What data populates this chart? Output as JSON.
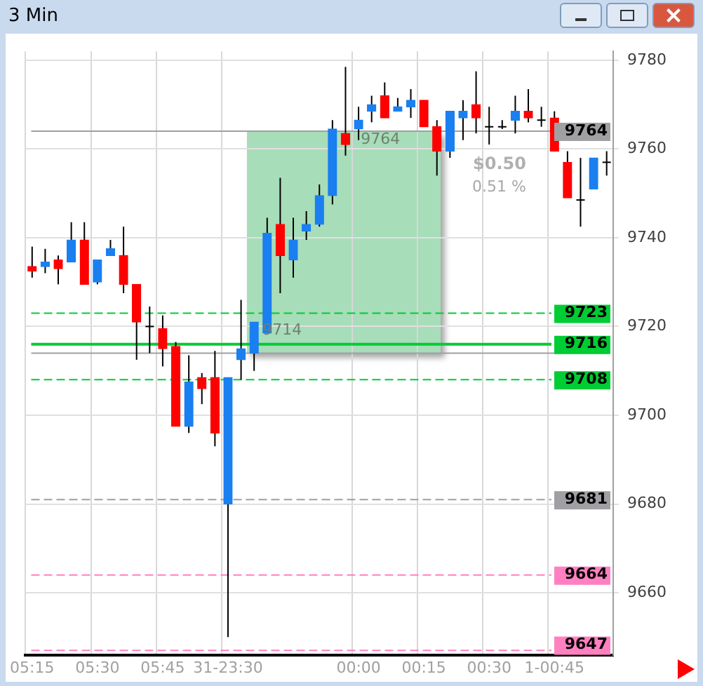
{
  "chart_data": {
    "type": "candlestick",
    "title": "3 Min",
    "categories": [
      "05:15",
      null,
      null,
      null,
      null,
      "05:30",
      null,
      null,
      null,
      null,
      "05:45",
      null,
      null,
      null,
      null,
      "31-23:30",
      null,
      null,
      null,
      null,
      null,
      null,
      null,
      null,
      null,
      "00:00",
      null,
      null,
      null,
      null,
      "00:15",
      null,
      null,
      null,
      null,
      "00:30",
      null,
      null,
      null,
      null,
      "1-00:45",
      null,
      null,
      null,
      null
    ],
    "ohlc": [
      [
        9733.5,
        9738,
        9731,
        9732.5
      ],
      [
        9733.5,
        9737.5,
        9732,
        9734.5
      ],
      [
        9735,
        9736,
        9729.5,
        9733
      ],
      [
        9734.5,
        9743.5,
        9734.5,
        9739.5
      ],
      [
        9739.5,
        9743.5,
        9729.5,
        9729.5
      ],
      [
        9730,
        9735,
        9729.5,
        9735
      ],
      [
        9736,
        9739.5,
        9736,
        9737.5
      ],
      [
        9736,
        9742.5,
        9727.5,
        9729.5
      ],
      [
        9729.5,
        9729.5,
        9712.5,
        9721
      ],
      [
        9720,
        9724.5,
        9714,
        9720
      ],
      [
        9719.5,
        9722.5,
        9711,
        9715
      ],
      [
        9715.5,
        9716.5,
        9697.5,
        9697.5
      ],
      [
        9697.5,
        9713.5,
        9696,
        9707.5
      ],
      [
        9708.5,
        9709.5,
        9702.5,
        9706
      ],
      [
        9708.5,
        9714.5,
        9693,
        9696
      ],
      [
        9680,
        9708.5,
        9650,
        9708.5
      ],
      [
        9712.5,
        9726,
        9708,
        9715
      ],
      [
        9714,
        9721,
        9710,
        9721
      ],
      [
        9718.5,
        9744.5,
        9718.5,
        9741
      ],
      [
        9743,
        9753.5,
        9727.5,
        9736
      ],
      [
        9735,
        9744.5,
        9731,
        9739.5
      ],
      [
        9741.5,
        9746,
        9739.5,
        9743
      ],
      [
        9743,
        9752,
        9742.5,
        9749.5
      ],
      [
        9749.5,
        9766.5,
        9747.5,
        9764.5
      ],
      [
        9763.5,
        9778.5,
        9758.5,
        9761
      ],
      [
        9764.5,
        9769.5,
        9762,
        9766.5
      ],
      [
        9768.5,
        9772,
        9766,
        9770
      ],
      [
        9772,
        9775,
        9767,
        9767
      ],
      [
        9768.5,
        9771.5,
        9768.5,
        9769.5
      ],
      [
        9769.5,
        9773.5,
        9767,
        9771
      ],
      [
        9771,
        9771,
        9765,
        9765
      ],
      [
        9765,
        9766.5,
        9754,
        9759.5
      ],
      [
        9759.5,
        9768.5,
        9758,
        9768.5
      ],
      [
        9767,
        9771,
        9762,
        9768.5
      ],
      [
        9770,
        9777.5,
        9763.5,
        9767
      ],
      [
        9765,
        9769.5,
        9761,
        9765
      ],
      [
        9765,
        9766.5,
        9764.5,
        9765
      ],
      [
        9766.5,
        9772,
        9763.5,
        9768.5
      ],
      [
        9768.5,
        9773.5,
        9766,
        9767
      ],
      [
        9766.5,
        9769.5,
        9765,
        9766.5
      ],
      [
        9767,
        9768.5,
        9759.5,
        9759.5
      ],
      [
        9757,
        9759.5,
        9749,
        9749
      ],
      [
        9748.5,
        9758,
        9742.5,
        9748.5
      ],
      [
        9751,
        9758,
        9751,
        9758
      ],
      [
        9757,
        9759.5,
        9754,
        9757
      ]
    ],
    "colors": [
      "#ff0000",
      "#1a7ff0",
      "#ff0000",
      "#1a7ff0",
      "#ff0000",
      "#1a7ff0",
      "#1a7ff0",
      "#ff0000",
      "#ff0000",
      "#000000",
      "#ff0000",
      "#ff0000",
      "#1a7ff0",
      "#ff0000",
      "#ff0000",
      "#1a7ff0",
      "#1a7ff0",
      "#1a7ff0",
      "#1a7ff0",
      "#ff0000",
      "#1a7ff0",
      "#1a7ff0",
      "#1a7ff0",
      "#1a7ff0",
      "#ff0000",
      "#1a7ff0",
      "#1a7ff0",
      "#ff0000",
      "#1a7ff0",
      "#1a7ff0",
      "#ff0000",
      "#ff0000",
      "#1a7ff0",
      "#1a7ff0",
      "#ff0000",
      "#000000",
      "#000000",
      "#1a7ff0",
      "#ff0000",
      "#000000",
      "#ff0000",
      "#ff0000",
      "#000000",
      "#1a7ff0",
      "#000000"
    ],
    "ylim": [
      9646,
      9782
    ],
    "yticks": [
      9660,
      9680,
      9700,
      9720,
      9740,
      9760,
      9780
    ],
    "grid": true,
    "ref_lines": [
      {
        "axis": "y",
        "value": 9764,
        "label": "9764",
        "color": "#a0a0a4",
        "line_style": "solid"
      },
      {
        "axis": "y",
        "value": 9723,
        "label": "9723",
        "color": "#00cc33",
        "line_style": "dashed"
      },
      {
        "axis": "y",
        "value": 9716,
        "label": "9716",
        "color": "#00cc33",
        "line_style": "solid"
      },
      {
        "axis": "y",
        "value": 9714,
        "color": "#a0a0a4",
        "line_style": "solid"
      },
      {
        "axis": "y",
        "value": 9708,
        "label": "9708",
        "color": "#00cc33",
        "line_style": "dashed"
      },
      {
        "axis": "y",
        "value": 9681,
        "label": "9681",
        "color": "#a0a0a4",
        "line_style": "dashed"
      },
      {
        "axis": "y",
        "value": 9664,
        "label": "9664",
        "color": "#ff80c0",
        "line_style": "dashed"
      },
      {
        "axis": "y",
        "value": 9647,
        "label": "9647",
        "color": "#ff80c0",
        "line_style": "dashed"
      }
    ],
    "annotations": [
      "$0.50",
      "0.51 %",
      "9764",
      "9714"
    ]
  }
}
